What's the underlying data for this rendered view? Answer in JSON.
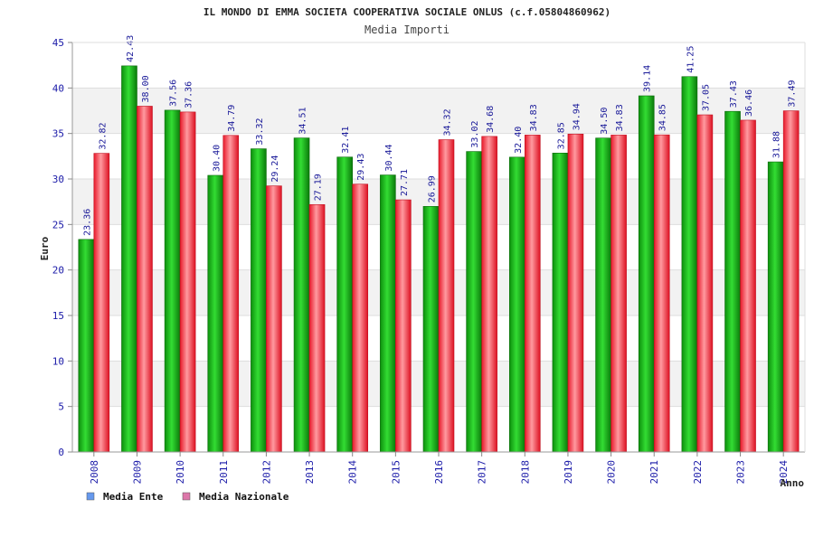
{
  "chart_data": {
    "type": "bar",
    "title": "IL MONDO DI EMMA SOCIETA COOPERATIVA SOCIALE ONLUS (c.f.05804860962)",
    "subtitle": "Media Importi",
    "ylabel": "Euro",
    "xlabel": "Anno",
    "ylim": [
      0,
      45
    ],
    "yticks": [
      0,
      5,
      10,
      15,
      20,
      25,
      30,
      35,
      40,
      45
    ],
    "grid": true,
    "legend_position": "bottom-left",
    "categories": [
      "2008",
      "2009",
      "2010",
      "2011",
      "2012",
      "2013",
      "2014",
      "2015",
      "2016",
      "2017",
      "2018",
      "2019",
      "2020",
      "2021",
      "2022",
      "2023",
      "2024"
    ],
    "series": [
      {
        "name": "Media Ente",
        "legend_color": "#6699ee",
        "bar_color": "#11aa11",
        "values": [
          23.36,
          42.43,
          37.56,
          30.4,
          33.32,
          34.51,
          32.41,
          30.44,
          26.99,
          33.02,
          32.4,
          32.85,
          34.5,
          39.14,
          41.25,
          37.43,
          31.88
        ],
        "labels": [
          "23.36",
          "42.43",
          "37.56",
          "30.40",
          "33.32",
          "34.51",
          "32.41",
          "30.44",
          "26.99",
          "33.02",
          "32.40",
          "32.85",
          "34.50",
          "39.14",
          "41.25",
          "37.43",
          "31.88"
        ]
      },
      {
        "name": "Media Nazionale",
        "legend_color": "#dd77aa",
        "bar_color": "#ee2233",
        "values": [
          32.82,
          38.0,
          37.36,
          34.79,
          29.24,
          27.19,
          29.43,
          27.71,
          34.32,
          34.68,
          34.83,
          34.94,
          34.83,
          34.85,
          37.05,
          36.46,
          37.49
        ],
        "labels": [
          "32.82",
          "38.00",
          "37.36",
          "34.79",
          "29.24",
          "27.19",
          "29.43",
          "27.71",
          "34.32",
          "34.68",
          "34.83",
          "34.94",
          "34.83",
          "34.85",
          "37.05",
          "36.46",
          "37.49"
        ]
      }
    ]
  }
}
